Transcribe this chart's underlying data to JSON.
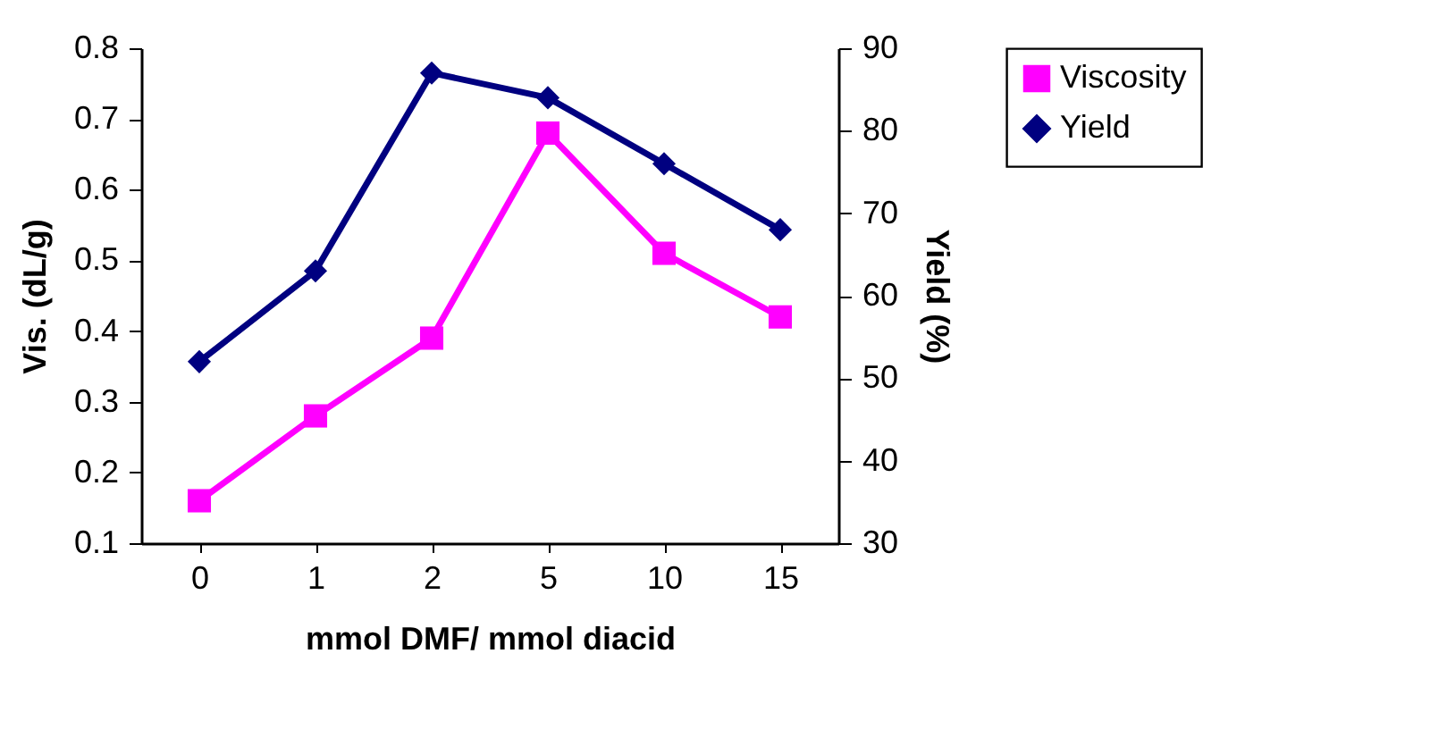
{
  "chart_data": {
    "type": "line",
    "xlabel": "mmol DMF/ mmol diacid",
    "ylabel": "Vis. (dL/g)",
    "y2label": "Yield (%)",
    "categories": [
      "0",
      "1",
      "2",
      "5",
      "10",
      "15"
    ],
    "series": [
      {
        "name": "Viscosity",
        "color": "#ff00ff",
        "marker": "square",
        "values": [
          0.16,
          0.28,
          0.39,
          0.68,
          0.51,
          0.42
        ]
      },
      {
        "name": "Yield",
        "color": "#000080",
        "marker": "diamond",
        "axis": "y2",
        "values": [
          52,
          63,
          87,
          84,
          76,
          68
        ]
      }
    ],
    "ylim": [
      0.1,
      0.8
    ],
    "yticks": [
      0.1,
      0.2,
      0.3,
      0.4,
      0.5,
      0.6,
      0.7,
      0.8
    ],
    "y2lim": [
      30,
      90
    ],
    "y2ticks": [
      30,
      40,
      50,
      60,
      70,
      80,
      90
    ],
    "grid": false,
    "legend": "right"
  }
}
